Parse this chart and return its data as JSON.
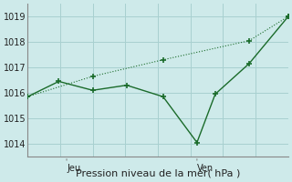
{
  "bg_color": "#ceeaea",
  "grid_color": "#a8d0d0",
  "line_color": "#1a6b2a",
  "spine_color": "#888888",
  "ylim": [
    1013.5,
    1019.5
  ],
  "yticks": [
    1014,
    1015,
    1016,
    1017,
    1018,
    1019
  ],
  "xlabel": "Pression niveau de la mer( hPa )",
  "xlim": [
    0,
    10
  ],
  "jeu_x": 1.5,
  "ven_x": 6.5,
  "line1_x": [
    0.0,
    1.2,
    2.5,
    3.8,
    5.2,
    6.5,
    7.2,
    8.5,
    10.0
  ],
  "line1_y": [
    1015.85,
    1016.45,
    1016.1,
    1016.3,
    1015.85,
    1014.05,
    1015.95,
    1017.15,
    1019.0
  ],
  "line2_x": [
    0.0,
    2.5,
    5.2,
    8.5,
    10.0
  ],
  "line2_y": [
    1015.85,
    1016.65,
    1017.3,
    1018.05,
    1019.0
  ],
  "ylabel_fontsize": 7,
  "xlabel_fontsize": 8
}
